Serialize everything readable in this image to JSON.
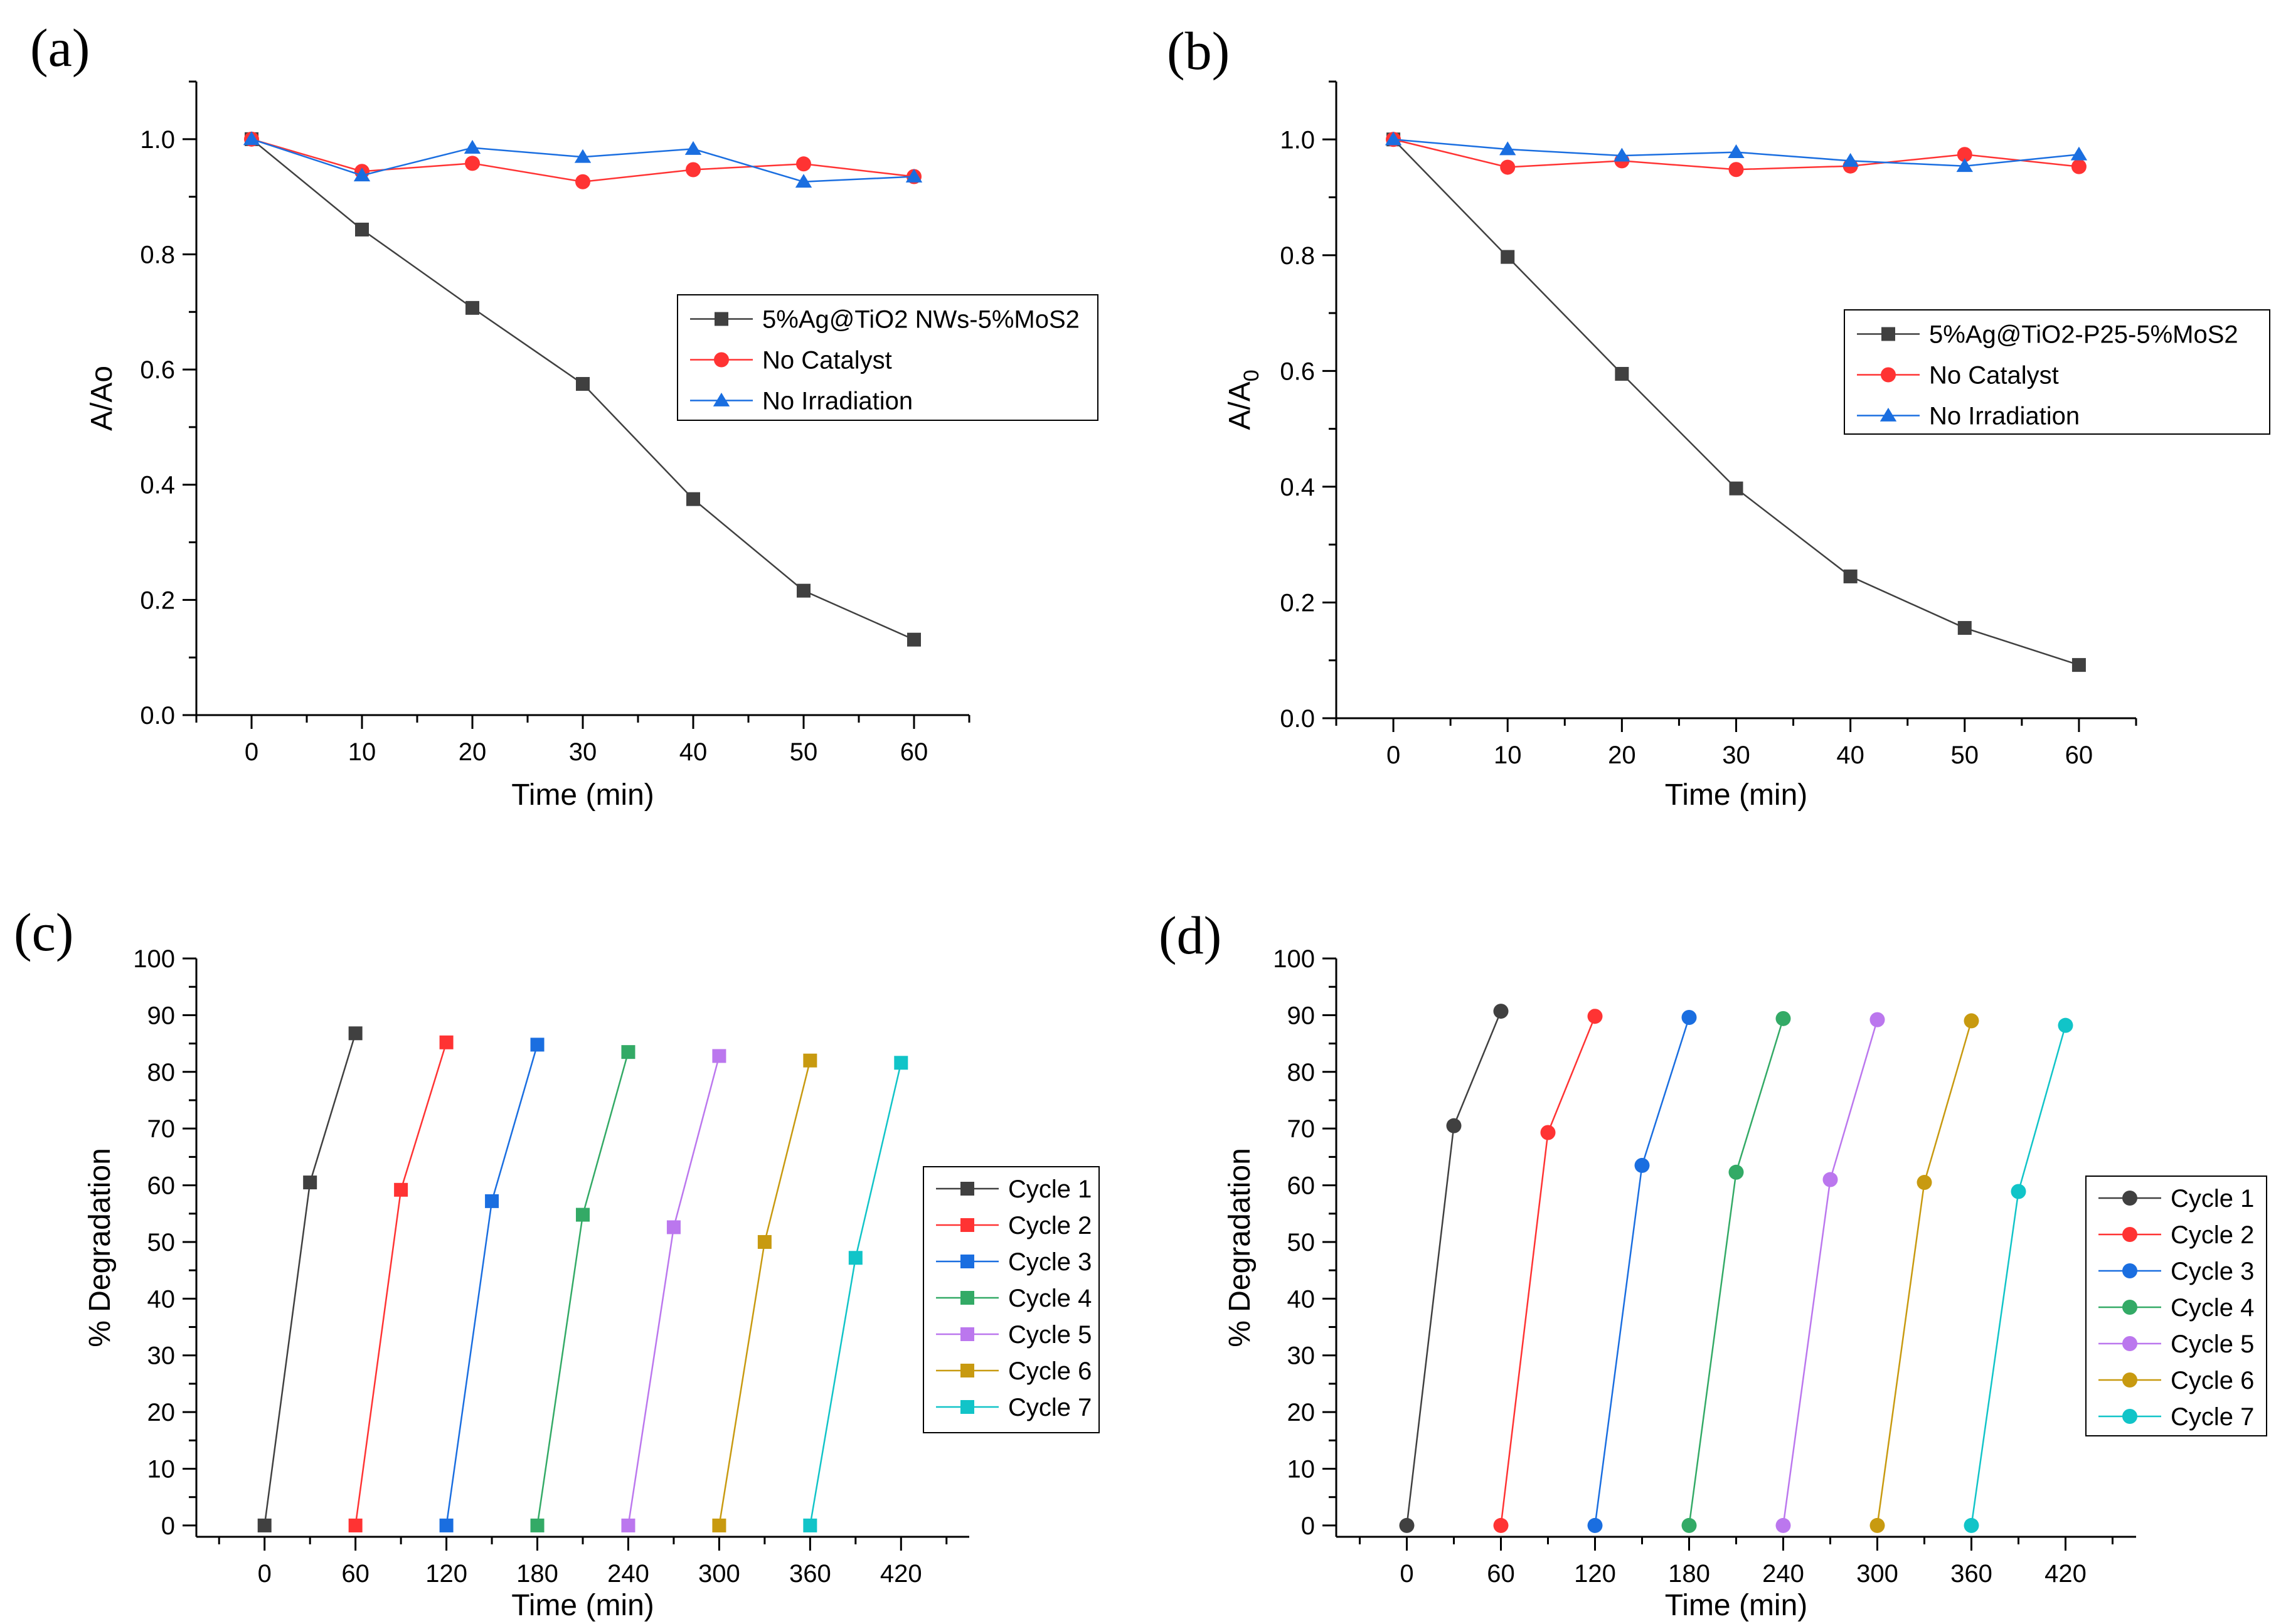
{
  "chart_data": [
    {
      "panel": "(a)",
      "type": "line",
      "xlabel": "Time (min)",
      "ylabel": "A/Ao",
      "xlim": [
        -5,
        65
      ],
      "ylim": [
        0,
        1.1
      ],
      "xticks": [
        0,
        10,
        20,
        30,
        40,
        50,
        60
      ],
      "yticks": [
        0.0,
        0.2,
        0.4,
        0.6,
        0.8,
        1.0
      ],
      "ytick_labels": [
        "0.0",
        "0.2",
        "0.4",
        "0.6",
        "0.8",
        "1.0"
      ],
      "grid": false,
      "legend_position": "center-right",
      "series": [
        {
          "name": "5%Ag@TiO2 NWs-5%MoS2",
          "marker": "square",
          "color": "#404040",
          "x": [
            0,
            10,
            20,
            30,
            40,
            50,
            60
          ],
          "y": [
            1.0,
            0.843,
            0.707,
            0.575,
            0.375,
            0.216,
            0.131
          ]
        },
        {
          "name": "No Catalyst",
          "marker": "circle",
          "color": "#ff3333",
          "x": [
            0,
            10,
            20,
            30,
            40,
            50,
            60
          ],
          "y": [
            1.0,
            0.944,
            0.958,
            0.926,
            0.947,
            0.957,
            0.935
          ]
        },
        {
          "name": "No Irradiation",
          "marker": "triangle",
          "color": "#1a6ee0",
          "x": [
            0,
            10,
            20,
            30,
            40,
            50,
            60
          ],
          "y": [
            1.0,
            0.937,
            0.985,
            0.969,
            0.983,
            0.926,
            0.935
          ]
        }
      ]
    },
    {
      "panel": "(b)",
      "type": "line",
      "xlabel": "Time (min)",
      "ylabel": "A/A",
      "ylabel_subscript": "0",
      "xlim": [
        -5,
        65
      ],
      "ylim": [
        0,
        1.1
      ],
      "xticks": [
        0,
        10,
        20,
        30,
        40,
        50,
        60
      ],
      "yticks": [
        0.0,
        0.2,
        0.4,
        0.6,
        0.8,
        1.0
      ],
      "ytick_labels": [
        "0.0",
        "0.2",
        "0.4",
        "0.6",
        "0.8",
        "1.0"
      ],
      "grid": false,
      "legend_position": "center-right",
      "series": [
        {
          "name": "5%Ag@TiO2-P25-5%MoS2",
          "marker": "square",
          "color": "#404040",
          "x": [
            0,
            10,
            20,
            30,
            40,
            50,
            60
          ],
          "y": [
            1.0,
            0.797,
            0.595,
            0.397,
            0.245,
            0.156,
            0.092
          ]
        },
        {
          "name": "No Catalyst",
          "marker": "circle",
          "color": "#ff3333",
          "x": [
            0,
            10,
            20,
            30,
            40,
            50,
            60
          ],
          "y": [
            1.0,
            0.952,
            0.963,
            0.948,
            0.954,
            0.974,
            0.953
          ]
        },
        {
          "name": "No Irradiation",
          "marker": "triangle",
          "color": "#1a6ee0",
          "x": [
            0,
            10,
            20,
            30,
            40,
            50,
            60
          ],
          "y": [
            1.0,
            0.983,
            0.972,
            0.978,
            0.963,
            0.954,
            0.974
          ]
        }
      ]
    },
    {
      "panel": "(c)",
      "type": "line",
      "xlabel": "Time (min)",
      "ylabel": "% Degradation",
      "xlim": [
        -45,
        465
      ],
      "ylim": [
        -2,
        100
      ],
      "xticks": [
        0,
        60,
        120,
        180,
        240,
        300,
        360,
        420
      ],
      "yticks": [
        0,
        10,
        20,
        30,
        40,
        50,
        60,
        70,
        80,
        90,
        100
      ],
      "ytick_labels": [
        "0",
        "10",
        "20",
        "30",
        "40",
        "50",
        "60",
        "70",
        "80",
        "90",
        "100"
      ],
      "grid": false,
      "legend_position": "center-right",
      "series": [
        {
          "name": "Cycle 1",
          "marker": "square",
          "color": "#404040",
          "x": [
            0,
            30,
            60
          ],
          "y": [
            0,
            60.5,
            86.8
          ]
        },
        {
          "name": "Cycle 2",
          "marker": "square",
          "color": "#ff3333",
          "x": [
            60,
            90,
            120
          ],
          "y": [
            0,
            59.2,
            85.2
          ]
        },
        {
          "name": "Cycle 3",
          "marker": "square",
          "color": "#1a6ee0",
          "x": [
            120,
            150,
            180
          ],
          "y": [
            0,
            57.2,
            84.8
          ]
        },
        {
          "name": "Cycle 4",
          "marker": "square",
          "color": "#33aa66",
          "x": [
            180,
            210,
            240
          ],
          "y": [
            0,
            54.8,
            83.5
          ]
        },
        {
          "name": "Cycle 5",
          "marker": "square",
          "color": "#bb77ee",
          "x": [
            240,
            270,
            300
          ],
          "y": [
            0,
            52.6,
            82.8
          ]
        },
        {
          "name": "Cycle 6",
          "marker": "square",
          "color": "#c89a10",
          "x": [
            300,
            330,
            360
          ],
          "y": [
            0,
            50.0,
            82.0
          ]
        },
        {
          "name": "Cycle 7",
          "marker": "square",
          "color": "#11c4c8",
          "x": [
            360,
            390,
            420
          ],
          "y": [
            0,
            47.2,
            81.6
          ]
        }
      ]
    },
    {
      "panel": "(d)",
      "type": "line",
      "xlabel": "Time (min)",
      "ylabel": "% Degradation",
      "xlim": [
        -45,
        465
      ],
      "ylim": [
        -2,
        100
      ],
      "xticks": [
        0,
        60,
        120,
        180,
        240,
        300,
        360,
        420
      ],
      "yticks": [
        0,
        10,
        20,
        30,
        40,
        50,
        60,
        70,
        80,
        90,
        100
      ],
      "ytick_labels": [
        "0",
        "10",
        "20",
        "30",
        "40",
        "50",
        "60",
        "70",
        "80",
        "90",
        "100"
      ],
      "grid": false,
      "legend_position": "center-right",
      "series": [
        {
          "name": "Cycle 1",
          "marker": "circle",
          "color": "#404040",
          "x": [
            0,
            30,
            60
          ],
          "y": [
            0,
            70.5,
            90.7
          ]
        },
        {
          "name": "Cycle 2",
          "marker": "circle",
          "color": "#ff3333",
          "x": [
            60,
            90,
            120
          ],
          "y": [
            0,
            69.3,
            89.8
          ]
        },
        {
          "name": "Cycle 3",
          "marker": "circle",
          "color": "#1a6ee0",
          "x": [
            120,
            150,
            180
          ],
          "y": [
            0,
            63.5,
            89.6
          ]
        },
        {
          "name": "Cycle 4",
          "marker": "circle",
          "color": "#33aa66",
          "x": [
            180,
            210,
            240
          ],
          "y": [
            0,
            62.3,
            89.4
          ]
        },
        {
          "name": "Cycle 5",
          "marker": "circle",
          "color": "#bb77ee",
          "x": [
            240,
            270,
            300
          ],
          "y": [
            0,
            61.0,
            89.2
          ]
        },
        {
          "name": "Cycle 6",
          "marker": "circle",
          "color": "#c89a10",
          "x": [
            300,
            330,
            360
          ],
          "y": [
            0,
            60.5,
            89.0
          ]
        },
        {
          "name": "Cycle 7",
          "marker": "circle",
          "color": "#11c4c8",
          "x": [
            360,
            390,
            420
          ],
          "y": [
            0,
            58.9,
            88.2
          ]
        }
      ]
    }
  ]
}
